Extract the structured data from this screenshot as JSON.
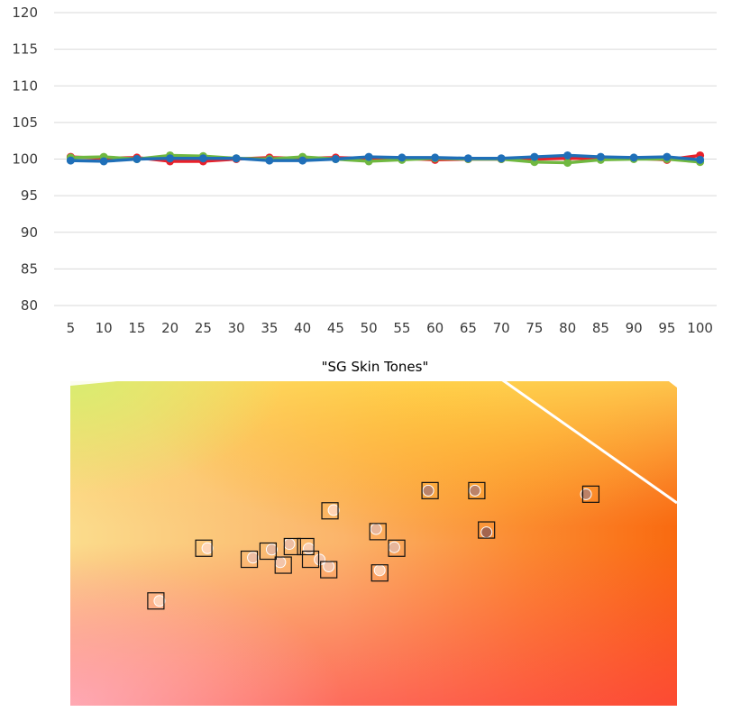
{
  "chart_data": [
    {
      "type": "line",
      "x": [
        5,
        10,
        15,
        20,
        25,
        30,
        35,
        40,
        45,
        50,
        55,
        60,
        65,
        70,
        75,
        80,
        85,
        90,
        95,
        100
      ],
      "ylim": [
        80,
        120
      ],
      "yticks": [
        80,
        85,
        90,
        95,
        100,
        105,
        110,
        115,
        120
      ],
      "grid": true,
      "series": [
        {
          "color": "#e8202a",
          "values": [
            100.3,
            100.1,
            100.2,
            99.7,
            99.7,
            100.0,
            100.2,
            100.1,
            100.2,
            100.1,
            100.1,
            99.9,
            100.0,
            100.0,
            100.0,
            100.1,
            100.1,
            100.1,
            99.9,
            100.5
          ]
        },
        {
          "color": "#70b840",
          "values": [
            100.2,
            100.3,
            100.0,
            100.5,
            100.4,
            100.1,
            100.0,
            100.3,
            100.0,
            99.7,
            99.9,
            100.1,
            100.0,
            100.0,
            99.6,
            99.5,
            99.9,
            100.0,
            100.0,
            99.6
          ]
        },
        {
          "color": "#1f6fb8",
          "values": [
            99.8,
            99.7,
            100.0,
            100.1,
            100.1,
            100.1,
            99.8,
            99.8,
            100.0,
            100.3,
            100.2,
            100.2,
            100.1,
            100.1,
            100.3,
            100.5,
            100.3,
            100.2,
            100.3,
            99.9
          ]
        }
      ]
    },
    {
      "type": "scatter",
      "title": "\"SG Skin Tones\"",
      "xlim": [
        0,
        1
      ],
      "ylim": [
        0,
        1
      ],
      "grid": false,
      "background": "color gamut gradient with white gamut boundary line",
      "series": [
        {
          "marker": "square",
          "points": [
            {
              "x": 0.141,
              "y": 0.322
            },
            {
              "x": 0.22,
              "y": 0.484
            },
            {
              "x": 0.295,
              "y": 0.45
            },
            {
              "x": 0.326,
              "y": 0.475
            },
            {
              "x": 0.351,
              "y": 0.432
            },
            {
              "x": 0.366,
              "y": 0.489
            },
            {
              "x": 0.388,
              "y": 0.489
            },
            {
              "x": 0.396,
              "y": 0.45
            },
            {
              "x": 0.426,
              "y": 0.418
            },
            {
              "x": 0.428,
              "y": 0.599
            },
            {
              "x": 0.507,
              "y": 0.535
            },
            {
              "x": 0.51,
              "y": 0.408
            },
            {
              "x": 0.538,
              "y": 0.484
            },
            {
              "x": 0.593,
              "y": 0.661
            },
            {
              "x": 0.67,
              "y": 0.661
            },
            {
              "x": 0.686,
              "y": 0.54
            },
            {
              "x": 0.858,
              "y": 0.65
            }
          ]
        },
        {
          "marker": "circle",
          "points": [
            {
              "x": 0.147,
              "y": 0.322,
              "shade": 0.0
            },
            {
              "x": 0.226,
              "y": 0.484,
              "shade": 0.0
            },
            {
              "x": 0.301,
              "y": 0.455,
              "shade": 0.15
            },
            {
              "x": 0.332,
              "y": 0.48,
              "shade": 0.2
            },
            {
              "x": 0.346,
              "y": 0.441,
              "shade": 0.1
            },
            {
              "x": 0.361,
              "y": 0.497,
              "shade": 0.15
            },
            {
              "x": 0.393,
              "y": 0.483,
              "shade": 0.05
            },
            {
              "x": 0.411,
              "y": 0.449,
              "shade": 0.1
            },
            {
              "x": 0.426,
              "y": 0.428,
              "shade": 0.1
            },
            {
              "x": 0.434,
              "y": 0.601,
              "shade": 0.0
            },
            {
              "x": 0.504,
              "y": 0.543,
              "shade": 0.2
            },
            {
              "x": 0.51,
              "y": 0.416,
              "shade": 0.0
            },
            {
              "x": 0.534,
              "y": 0.487,
              "shade": 0.2
            },
            {
              "x": 0.59,
              "y": 0.661,
              "shade": 0.55
            },
            {
              "x": 0.667,
              "y": 0.661,
              "shade": 0.55
            },
            {
              "x": 0.686,
              "y": 0.533,
              "shade": 0.75
            },
            {
              "x": 0.85,
              "y": 0.65,
              "shade": 0.55
            }
          ]
        }
      ]
    }
  ]
}
